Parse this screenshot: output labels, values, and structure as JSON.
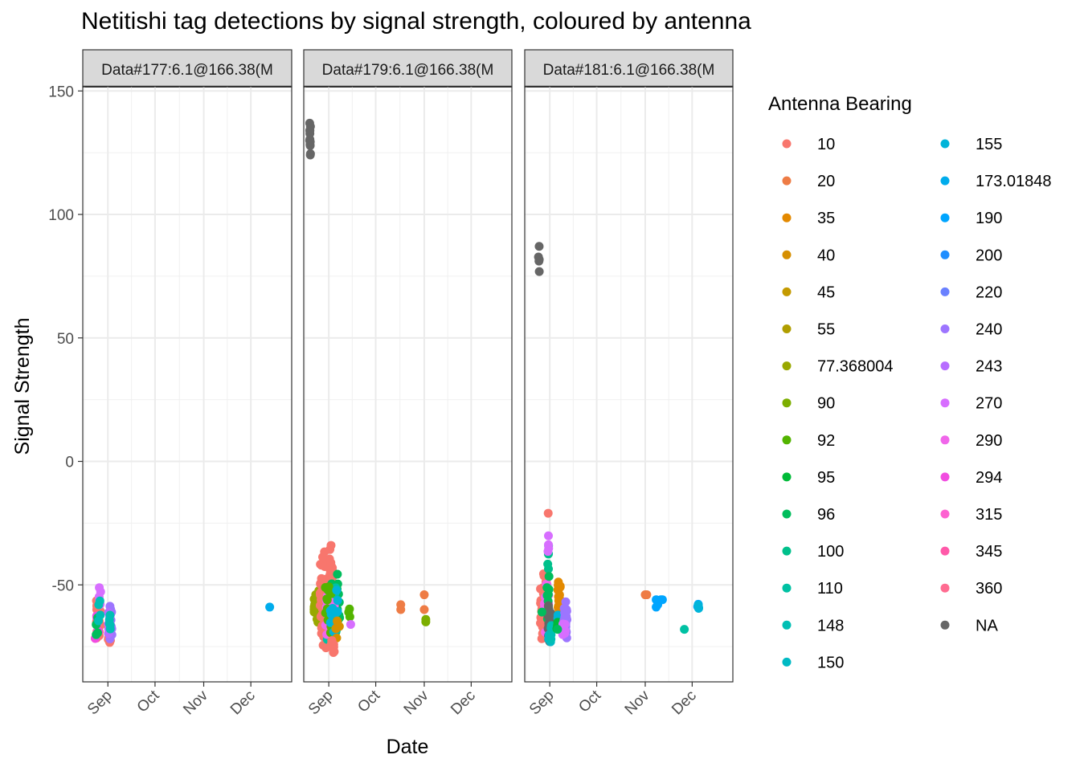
{
  "chart_data": {
    "type": "scatter",
    "title": "Netitishi tag detections by signal strength, coloured by antenna",
    "xlabel": "Date",
    "ylabel": "Signal Strength",
    "x_tick_labels": [
      "Sep",
      "Oct",
      "Nov",
      "Dec"
    ],
    "y_tick_labels": [
      "150",
      "100",
      "50",
      "0",
      "-50"
    ],
    "y_ticks": [
      150,
      100,
      50,
      0,
      -50
    ],
    "ylim": [
      -89,
      157
    ],
    "xlim_days": [
      -16,
      117
    ],
    "grid": true,
    "legend": {
      "title": "Antenna Bearing",
      "placement": "right",
      "entries": [
        {
          "label": "10",
          "color": "#F8766D"
        },
        {
          "label": "20",
          "color": "#EE7C45"
        },
        {
          "label": "35",
          "color": "#E38900"
        },
        {
          "label": "40",
          "color": "#D68F00"
        },
        {
          "label": "45",
          "color": "#C49A00"
        },
        {
          "label": "55",
          "color": "#B09E00"
        },
        {
          "label": "77.368004",
          "color": "#99A800"
        },
        {
          "label": "90",
          "color": "#7CAE00"
        },
        {
          "label": "92",
          "color": "#53B400"
        },
        {
          "label": "95",
          "color": "#00BA38"
        },
        {
          "label": "96",
          "color": "#00BD5C"
        },
        {
          "label": "100",
          "color": "#00C08B"
        },
        {
          "label": "110",
          "color": "#00C1A3"
        },
        {
          "label": "148",
          "color": "#00BFB4"
        },
        {
          "label": "150",
          "color": "#00BAC4"
        },
        {
          "label": "155",
          "color": "#00B4D9"
        },
        {
          "label": "173.01848",
          "color": "#00ACEC"
        },
        {
          "label": "190",
          "color": "#00A5FF"
        },
        {
          "label": "200",
          "color": "#1F8EFF"
        },
        {
          "label": "220",
          "color": "#6A81FF"
        },
        {
          "label": "240",
          "color": "#9D75FF"
        },
        {
          "label": "243",
          "color": "#B76DFF"
        },
        {
          "label": "270",
          "color": "#D76EFF"
        },
        {
          "label": "290",
          "color": "#F066EA"
        },
        {
          "label": "294",
          "color": "#F14CE0"
        },
        {
          "label": "315",
          "color": "#FD61D1"
        },
        {
          "label": "345",
          "color": "#FF59A9"
        },
        {
          "label": "360",
          "color": "#FF6C91"
        },
        {
          "label": "NA",
          "color": "#666666"
        }
      ]
    },
    "panels": [
      {
        "strip": "Data#177:6.1@166.38(M",
        "clusters": [
          {
            "color": "#F8766D",
            "day": -6,
            "day_jitter": 1.5,
            "y_min": -74,
            "y_max": -53,
            "n": 28
          },
          {
            "color": "#F14CE0",
            "day": -7,
            "day_jitter": 1.2,
            "y_min": -74,
            "y_max": -60,
            "n": 6
          },
          {
            "color": "#00BD5C",
            "day": -7,
            "day_jitter": 1.0,
            "y_min": -71,
            "y_max": -62,
            "n": 6
          },
          {
            "color": "#D76EFF",
            "day": -5,
            "day_jitter": 1.0,
            "y_min": -58,
            "y_max": -51,
            "n": 5
          },
          {
            "color": "#00BFB4",
            "day": -5,
            "day_jitter": 1.0,
            "y_min": -66,
            "y_max": -56,
            "n": 4
          },
          {
            "color": "#F8766D",
            "day": 1,
            "day_jitter": 0.8,
            "y_min": -75,
            "y_max": -66,
            "n": 8
          },
          {
            "color": "#9D75FF",
            "day": 2,
            "day_jitter": 0.8,
            "y_min": -72,
            "y_max": -58,
            "n": 18
          },
          {
            "color": "#B76DFF",
            "day": 1,
            "day_jitter": 0.8,
            "y_min": -70,
            "y_max": -60,
            "n": 8
          },
          {
            "color": "#00BFB4",
            "day": 1,
            "day_jitter": 0.6,
            "y_min": -70,
            "y_max": -62,
            "n": 5
          },
          {
            "color": "#00ACEC",
            "day": 103,
            "day_jitter": 0,
            "y_min": -59,
            "y_max": -59,
            "n": 1
          }
        ],
        "points": []
      },
      {
        "strip": "Data#179:6.1@166.38(M",
        "clusters": [
          {
            "color": "#666666",
            "day": -12,
            "day_jitter": 0.3,
            "y_min": 119,
            "y_max": 141,
            "n": 12
          },
          {
            "color": "#99A800",
            "day": -7,
            "day_jitter": 2.5,
            "y_min": -66,
            "y_max": -51,
            "n": 28
          },
          {
            "color": "#F8766D",
            "day": -1,
            "day_jitter": 4.5,
            "y_min": -77,
            "y_max": -33,
            "n": 120
          },
          {
            "color": "#00BD5C",
            "day": 4,
            "day_jitter": 3,
            "y_min": -76,
            "y_max": -44,
            "n": 40
          },
          {
            "color": "#00C1A3",
            "day": 2,
            "day_jitter": 3,
            "y_min": -75,
            "y_max": -46,
            "n": 20
          },
          {
            "color": "#F066EA",
            "day": 1,
            "day_jitter": 3,
            "y_min": -73,
            "y_max": -50,
            "n": 16
          },
          {
            "color": "#53B400",
            "day": 0,
            "day_jitter": 3,
            "y_min": -72,
            "y_max": -48,
            "n": 18
          },
          {
            "color": "#00B4D9",
            "day": 3,
            "day_jitter": 3,
            "y_min": -72,
            "y_max": -52,
            "n": 12
          },
          {
            "color": "#D68F00",
            "day": 6,
            "day_jitter": 1.5,
            "y_min": -72,
            "y_max": -62,
            "n": 6
          },
          {
            "color": "#F8766D",
            "day": 3,
            "day_jitter": 2,
            "y_min": -79,
            "y_max": -70,
            "n": 10
          },
          {
            "color": "#53B400",
            "day": 13,
            "day_jitter": 0.5,
            "y_min": -64,
            "y_max": -58,
            "n": 3
          }
        ],
        "points": [
          {
            "color": "#D76EFF",
            "day": 14,
            "y": -66
          },
          {
            "color": "#EE7C45",
            "day": 46,
            "y": -58
          },
          {
            "color": "#EE7C45",
            "day": 46,
            "y": -60
          },
          {
            "color": "#EE7C45",
            "day": 61,
            "y": -54
          },
          {
            "color": "#EE7C45",
            "day": 61,
            "y": -60
          },
          {
            "color": "#7CAE00",
            "day": 62,
            "y": -64
          },
          {
            "color": "#7CAE00",
            "day": 62,
            "y": -65
          }
        ]
      },
      {
        "strip": "Data#181:6.1@166.38(M",
        "clusters": [
          {
            "color": "#666666",
            "day": -7,
            "day_jitter": 0.3,
            "y_min": 74,
            "y_max": 89,
            "n": 5
          },
          {
            "color": "#F8766D",
            "day": -4,
            "day_jitter": 2,
            "y_min": -74,
            "y_max": -43,
            "n": 40
          },
          {
            "color": "#F066EA",
            "day": -2,
            "day_jitter": 1.5,
            "y_min": -73,
            "y_max": -46,
            "n": 16
          },
          {
            "color": "#00C08B",
            "day": -1,
            "day_jitter": 0.3,
            "y_min": -44,
            "y_max": -33,
            "n": 5
          },
          {
            "color": "#D76EFF",
            "day": -1,
            "day_jitter": 0.3,
            "y_min": -40,
            "y_max": -29,
            "n": 4
          },
          {
            "color": "#00BD5C",
            "day": -1,
            "day_jitter": 0.8,
            "y_min": -65,
            "y_max": -44,
            "n": 8
          },
          {
            "color": "#666666",
            "day": 0,
            "day_jitter": 1.2,
            "y_min": -74,
            "y_max": -57,
            "n": 30
          },
          {
            "color": "#00BAC4",
            "day": 0,
            "day_jitter": 0.8,
            "y_min": -74,
            "y_max": -70,
            "n": 4
          },
          {
            "color": "#00BFB4",
            "day": 1,
            "day_jitter": 0.5,
            "y_min": -72,
            "y_max": -65,
            "n": 4
          },
          {
            "color": "#E38900",
            "day": 6,
            "day_jitter": 0.8,
            "y_min": -69,
            "y_max": -45,
            "n": 28
          },
          {
            "color": "#00B4D9",
            "day": 5,
            "day_jitter": 0.5,
            "y_min": -65,
            "y_max": -62,
            "n": 3
          },
          {
            "color": "#00BA38",
            "day": 5,
            "day_jitter": 0.5,
            "y_min": -69,
            "y_max": -65,
            "n": 3
          },
          {
            "color": "#9D75FF",
            "day": 10,
            "day_jitter": 1,
            "y_min": -73,
            "y_max": -55,
            "n": 24
          },
          {
            "color": "#D76EFF",
            "day": 9,
            "day_jitter": 1,
            "y_min": -72,
            "y_max": -62,
            "n": 8
          },
          {
            "color": "#00A5FF",
            "day": 95,
            "day_jitter": 0.5,
            "y_min": -60,
            "y_max": -57,
            "n": 4
          },
          {
            "color": "#00B4D9",
            "day": 95,
            "day_jitter": 0.5,
            "y_min": -60,
            "y_max": -58,
            "n": 3
          }
        ],
        "points": [
          {
            "color": "#F8766D",
            "day": -1,
            "y": -21
          },
          {
            "color": "#00BD5C",
            "day": -5,
            "y": -61
          },
          {
            "color": "#00BD5C",
            "day": 5,
            "y": -68
          },
          {
            "color": "#EE7C45",
            "day": 61,
            "y": -54
          },
          {
            "color": "#EE7C45",
            "day": 62,
            "y": -54
          },
          {
            "color": "#00A5FF",
            "day": 68,
            "y": -56
          },
          {
            "color": "#00A5FF",
            "day": 69,
            "y": -58
          },
          {
            "color": "#00A5FF",
            "day": 68,
            "y": -59
          },
          {
            "color": "#00A5FF",
            "day": 71,
            "y": -56
          },
          {
            "color": "#00A5FF",
            "day": 72,
            "y": -56
          },
          {
            "color": "#00C1A3",
            "day": 86,
            "y": -68
          }
        ]
      }
    ]
  }
}
